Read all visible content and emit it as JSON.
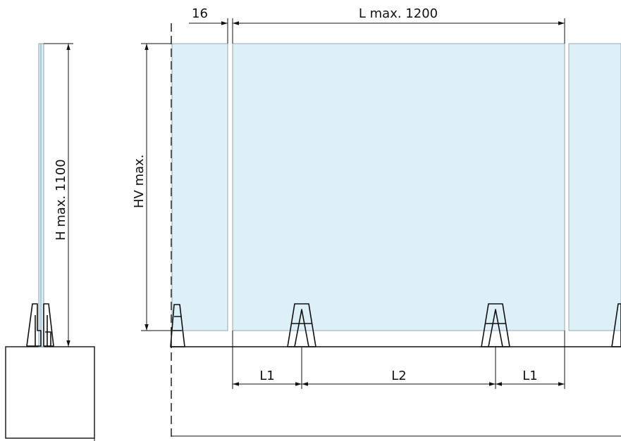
{
  "labels": {
    "gap": "16",
    "length_max": "L max. 1200",
    "height_max": "H max. 1100",
    "glass_height_max": "HV max.",
    "spacing_end_left": "L1",
    "spacing_middle": "L2",
    "spacing_end_right": "L1"
  },
  "colors": {
    "glass_fill": "#ddeff7",
    "glass_edge": "#9aa8b0",
    "line": "#111111"
  }
}
